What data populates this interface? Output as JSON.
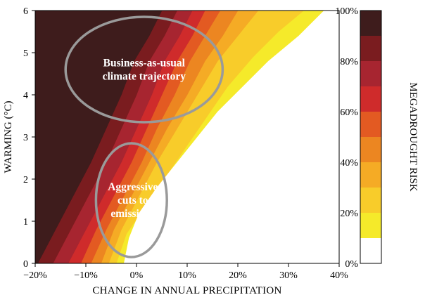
{
  "chart_data": {
    "type": "heatmap",
    "xlabel": "CHANGE IN ANNUAL PRECIPITATION",
    "ylabel": "WARMING (°C)",
    "xlim": [
      -20,
      40
    ],
    "ylim": [
      0,
      6
    ],
    "x_ticks": [
      -20,
      -10,
      0,
      10,
      20,
      30,
      40
    ],
    "x_tick_labels": [
      "−20%",
      "−10%",
      "0%",
      "10%",
      "20%",
      "30%",
      "40%"
    ],
    "y_ticks": [
      0,
      1,
      2,
      3,
      4,
      5,
      6
    ],
    "y_tick_labels": [
      "0",
      "1",
      "2",
      "3",
      "4",
      "5",
      "6"
    ],
    "colorbar": {
      "label": "MEGADROUGHT RISK",
      "ticks": [
        0,
        20,
        40,
        60,
        80,
        100
      ],
      "tick_labels": [
        "0%",
        "20%",
        "40%",
        "60%",
        "80%",
        "100%"
      ],
      "bins": [
        {
          "range": [
            0,
            10
          ],
          "color": "#ffffff"
        },
        {
          "range": [
            10,
            20
          ],
          "color": "#f5ea2a"
        },
        {
          "range": [
            20,
            30
          ],
          "color": "#f8cc2a"
        },
        {
          "range": [
            30,
            40
          ],
          "color": "#f5ab25"
        },
        {
          "range": [
            40,
            50
          ],
          "color": "#ec8621"
        },
        {
          "range": [
            50,
            60
          ],
          "color": "#e35a22"
        },
        {
          "range": [
            60,
            70
          ],
          "color": "#cf2b2b"
        },
        {
          "range": [
            70,
            80
          ],
          "color": "#a72530"
        },
        {
          "range": [
            80,
            90
          ],
          "color": "#7a1c1f"
        },
        {
          "range": [
            90,
            100
          ],
          "color": "#3e1c1c"
        }
      ]
    },
    "contour_boundaries": [
      {
        "risk": 10,
        "points": [
          [
            -2.5,
            0
          ],
          [
            -1.5,
            0.6
          ],
          [
            0.5,
            1.2
          ],
          [
            4,
            1.8
          ],
          [
            8,
            2.4
          ],
          [
            12,
            3.0
          ],
          [
            16,
            3.6
          ],
          [
            21,
            4.2
          ],
          [
            26,
            4.8
          ],
          [
            32,
            5.4
          ],
          [
            37,
            6
          ]
        ]
      },
      {
        "risk": 20,
        "points": [
          [
            -4,
            0
          ],
          [
            -2,
            0.7
          ],
          [
            2,
            1.4
          ],
          [
            6,
            2.1
          ],
          [
            10,
            2.8
          ],
          [
            14,
            3.5
          ],
          [
            18,
            4.2
          ],
          [
            23,
            4.9
          ],
          [
            28,
            5.5
          ],
          [
            33,
            6
          ]
        ]
      },
      {
        "risk": 30,
        "points": [
          [
            -5.5,
            0
          ],
          [
            -3,
            0.8
          ],
          [
            0.5,
            1.6
          ],
          [
            4,
            2.4
          ],
          [
            8,
            3.2
          ],
          [
            12,
            4.0
          ],
          [
            16,
            4.8
          ],
          [
            20,
            5.4
          ],
          [
            24,
            6
          ]
        ]
      },
      {
        "risk": 40,
        "points": [
          [
            -7,
            0
          ],
          [
            -4.5,
            0.8
          ],
          [
            -1,
            1.6
          ],
          [
            2.5,
            2.4
          ],
          [
            6,
            3.2
          ],
          [
            10,
            4.0
          ],
          [
            13.5,
            4.8
          ],
          [
            17,
            5.4
          ],
          [
            20,
            6
          ]
        ]
      },
      {
        "risk": 50,
        "points": [
          [
            -9,
            0
          ],
          [
            -6,
            0.8
          ],
          [
            -2.5,
            1.6
          ],
          [
            1,
            2.4
          ],
          [
            4,
            3.2
          ],
          [
            7.5,
            4.0
          ],
          [
            10.5,
            4.8
          ],
          [
            13.5,
            5.4
          ],
          [
            16.5,
            6
          ]
        ]
      },
      {
        "risk": 60,
        "points": [
          [
            -11,
            0
          ],
          [
            -8,
            0.8
          ],
          [
            -4.5,
            1.6
          ],
          [
            -1,
            2.4
          ],
          [
            2,
            3.2
          ],
          [
            5,
            4.0
          ],
          [
            8,
            4.8
          ],
          [
            11,
            5.4
          ],
          [
            13.5,
            6
          ]
        ]
      },
      {
        "risk": 70,
        "points": [
          [
            -13.5,
            0
          ],
          [
            -10,
            0.8
          ],
          [
            -6.5,
            1.6
          ],
          [
            -3,
            2.4
          ],
          [
            0,
            3.2
          ],
          [
            3,
            4.0
          ],
          [
            5.5,
            4.8
          ],
          [
            8.5,
            5.4
          ],
          [
            11,
            6
          ]
        ]
      },
      {
        "risk": 80,
        "points": [
          [
            -16.5,
            0
          ],
          [
            -13,
            0.8
          ],
          [
            -9.5,
            1.6
          ],
          [
            -6,
            2.4
          ],
          [
            -3,
            3.2
          ],
          [
            0,
            4.0
          ],
          [
            2.5,
            4.8
          ],
          [
            5.5,
            5.4
          ],
          [
            8,
            6
          ]
        ]
      },
      {
        "risk": 90,
        "points": [
          [
            -19.5,
            0
          ],
          [
            -16,
            0.8
          ],
          [
            -12.5,
            1.6
          ],
          [
            -9,
            2.4
          ],
          [
            -6,
            3.2
          ],
          [
            -3,
            4.0
          ],
          [
            -0.5,
            4.8
          ],
          [
            2.5,
            5.4
          ],
          [
            5,
            6
          ]
        ]
      }
    ],
    "annotations": [
      {
        "lines": [
          "Business-as-usual",
          "climate trajectory"
        ],
        "center": [
          1.5,
          4.6
        ],
        "radius": [
          15.5,
          1.25
        ]
      },
      {
        "lines": [
          "Aggressive",
          "cuts to",
          "emissions"
        ],
        "center": [
          -1,
          1.5
        ],
        "radius": [
          7,
          1.35
        ]
      }
    ]
  }
}
